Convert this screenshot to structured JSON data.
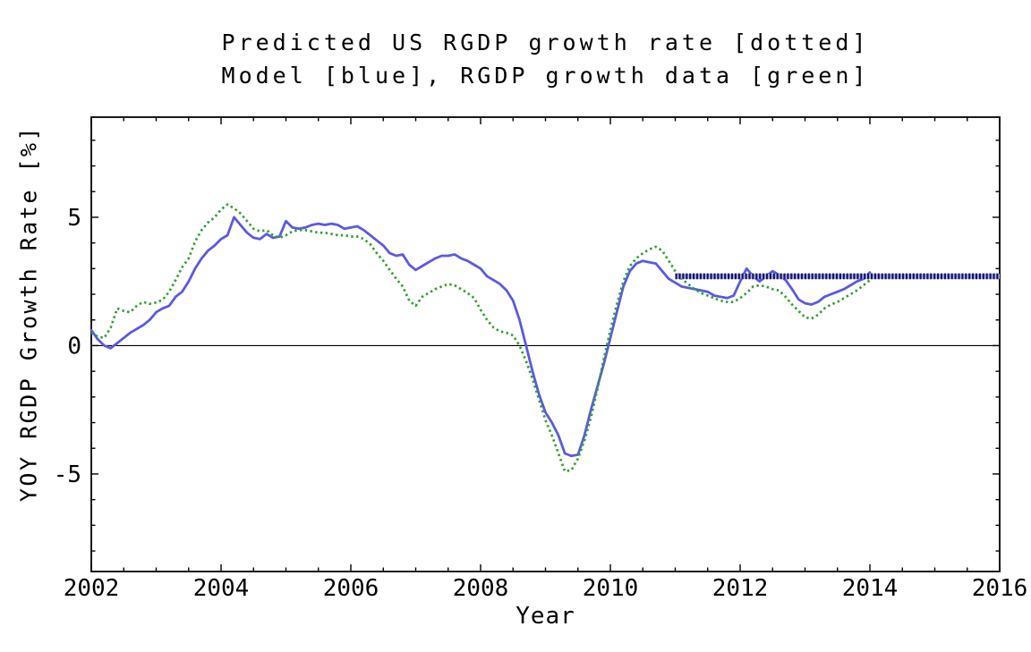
{
  "title_lines": [
    "Predicted US RGDP growth rate [dotted]",
    "Model [blue], RGDP growth data [green]"
  ],
  "chart_data": {
    "type": "line",
    "title": "Predicted US RGDP growth rate [dotted] Model [blue], RGDP growth data [green]",
    "xlabel": "Year",
    "ylabel": "YOY RGDP Growth Rate [%]",
    "xlim": [
      2002,
      2016
    ],
    "ylim": [
      -8.8,
      8.9
    ],
    "x_major_ticks": [
      2002,
      2004,
      2006,
      2008,
      2010,
      2012,
      2014,
      2016
    ],
    "x_minor_step": 0.5,
    "y_major_ticks": [
      -5,
      0,
      5
    ],
    "y_minor_step": 1,
    "grid": false,
    "zero_line": true,
    "frame_color": "#000000",
    "series": [
      {
        "name": "Model",
        "legend_hint": "blue",
        "color": "#5a5ae1",
        "style": "solid",
        "x_start": 2002.0,
        "x_step": 0.1,
        "y": [
          0.6,
          0.25,
          0.0,
          -0.1,
          0.1,
          0.3,
          0.5,
          0.65,
          0.8,
          1.0,
          1.3,
          1.45,
          1.55,
          1.9,
          2.1,
          2.5,
          3.0,
          3.4,
          3.7,
          3.9,
          4.15,
          4.3,
          5.0,
          4.7,
          4.4,
          4.2,
          4.15,
          4.35,
          4.2,
          4.25,
          4.85,
          4.6,
          4.55,
          4.6,
          4.7,
          4.75,
          4.7,
          4.75,
          4.7,
          4.55,
          4.6,
          4.65,
          4.5,
          4.3,
          4.1,
          3.9,
          3.6,
          3.5,
          3.55,
          3.15,
          2.95,
          3.1,
          3.25,
          3.4,
          3.5,
          3.5,
          3.55,
          3.4,
          3.3,
          3.15,
          3.0,
          2.7,
          2.55,
          2.4,
          2.15,
          1.75,
          1.0,
          0.0,
          -1.0,
          -1.9,
          -2.6,
          -3.0,
          -3.5,
          -4.2,
          -4.3,
          -4.25,
          -3.5,
          -2.5,
          -1.6,
          -0.7,
          0.3,
          1.3,
          2.3,
          2.9,
          3.2,
          3.3,
          3.25,
          3.2,
          2.9,
          2.6,
          2.45,
          2.3,
          2.25,
          2.2,
          2.15,
          2.1,
          1.95,
          1.9,
          1.85,
          1.95,
          2.5,
          3.0,
          2.7,
          2.5,
          2.7,
          2.9,
          2.75,
          2.55,
          2.2,
          1.8,
          1.65,
          1.6,
          1.7,
          1.9,
          2.0,
          2.1,
          2.2,
          2.35,
          2.5,
          2.6,
          2.85
        ]
      },
      {
        "name": "RGDP growth data",
        "legend_hint": "green",
        "color": "#2da02d",
        "style": "dotted",
        "x_start": 2002.0,
        "x_step": 0.1,
        "y": [
          0.5,
          0.35,
          0.3,
          0.7,
          1.45,
          1.35,
          1.3,
          1.55,
          1.7,
          1.63,
          1.68,
          1.78,
          2.1,
          2.55,
          3.05,
          3.4,
          4.05,
          4.5,
          4.8,
          5.0,
          5.3,
          5.5,
          5.35,
          5.15,
          4.85,
          4.55,
          4.45,
          4.5,
          4.3,
          4.2,
          4.3,
          4.45,
          4.5,
          4.5,
          4.45,
          4.4,
          4.4,
          4.35,
          4.3,
          4.3,
          4.25,
          4.25,
          4.15,
          3.95,
          3.6,
          3.3,
          2.95,
          2.6,
          2.3,
          1.75,
          1.55,
          1.9,
          2.05,
          2.2,
          2.3,
          2.4,
          2.35,
          2.2,
          2.05,
          1.85,
          1.4,
          1.0,
          0.7,
          0.55,
          0.5,
          0.4,
          0.0,
          -0.6,
          -1.3,
          -2.1,
          -2.9,
          -3.5,
          -4.2,
          -4.9,
          -4.85,
          -4.4,
          -3.7,
          -2.8,
          -1.7,
          -0.5,
          0.6,
          1.6,
          2.5,
          3.1,
          3.4,
          3.6,
          3.75,
          3.85,
          3.7,
          3.3,
          2.9,
          2.6,
          2.4,
          2.2,
          2.05,
          1.95,
          1.85,
          1.75,
          1.7,
          1.7,
          1.85,
          2.05,
          2.3,
          2.35,
          2.3,
          2.2,
          2.15,
          1.9,
          1.6,
          1.35,
          1.1,
          1.05,
          1.2,
          1.45,
          1.6,
          1.7,
          1.85,
          2.0,
          2.15,
          2.35,
          2.55
        ]
      },
      {
        "name": "Predicted US RGDP growth rate",
        "legend_hint": "dotted",
        "color": "#141464",
        "halo_color": "#b3b7ee",
        "style": "thick-dashed",
        "x": [
          2011.0,
          2016.0
        ],
        "y": [
          2.7,
          2.7
        ]
      }
    ]
  }
}
